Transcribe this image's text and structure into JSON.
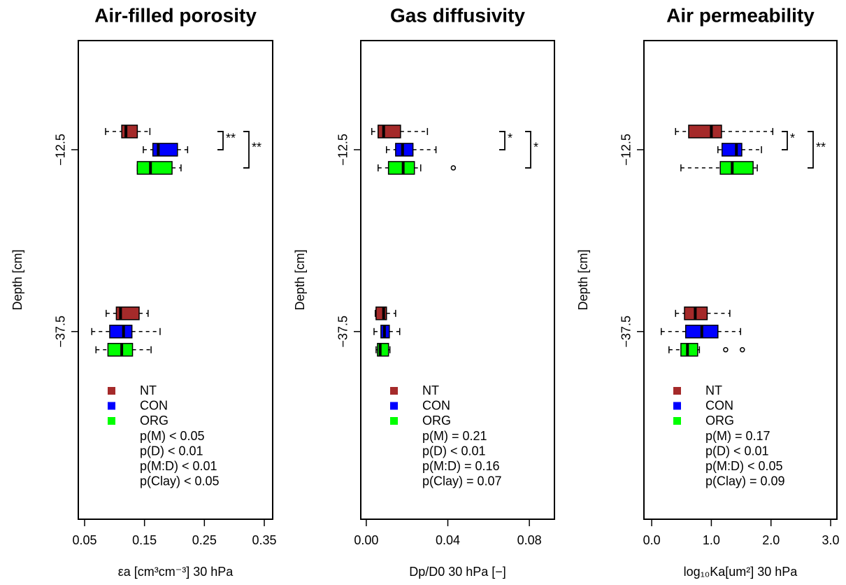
{
  "chart_data": [
    {
      "type": "boxplot",
      "title": "Air-filled porosity",
      "x_label": "εa [cm³cm⁻³] 30 hPa",
      "y_label": "Depth [cm]",
      "y": [
        -12.5,
        -37.5
      ],
      "xlim": [
        0.0395,
        0.364
      ],
      "xticks": [
        0.05,
        0.15,
        0.25,
        0.35
      ],
      "ylim": [
        -63.3,
        2.5
      ],
      "yticks": [
        {
          "value": -12.5,
          "label": "−12.5"
        },
        {
          "value": -37.5,
          "label": "−37.5"
        }
      ],
      "series": [
        {
          "name": "NT",
          "color": "#a52a2a",
          "values": [
            {
              "whisker_low": 0.085,
              "q1": 0.112,
              "median": 0.119,
              "q3": 0.138,
              "whisker_high": 0.159,
              "outliers": []
            },
            {
              "whisker_low": 0.086,
              "q1": 0.103,
              "median": 0.11,
              "q3": 0.141,
              "whisker_high": 0.156,
              "outliers": []
            }
          ]
        },
        {
          "name": "CON",
          "color": "#0000ff",
          "values": [
            {
              "whisker_low": 0.148,
              "q1": 0.164,
              "median": 0.173,
              "q3": 0.205,
              "whisker_high": 0.222,
              "outliers": []
            },
            {
              "whisker_low": 0.062,
              "q1": 0.092,
              "median": 0.115,
              "q3": 0.129,
              "whisker_high": 0.176,
              "outliers": []
            }
          ]
        },
        {
          "name": "ORG",
          "color": "#00ff00",
          "values": [
            {
              "whisker_low": 0.138,
              "q1": 0.138,
              "median": 0.16,
              "q3": 0.196,
              "whisker_high": 0.211,
              "outliers": []
            },
            {
              "whisker_low": 0.069,
              "q1": 0.089,
              "median": 0.112,
              "q3": 0.13,
              "whisker_high": 0.161,
              "outliers": []
            }
          ]
        }
      ],
      "brackets": [
        {
          "label": "**",
          "groups": [
            "NT",
            "CON"
          ]
        },
        {
          "label": "**",
          "groups": [
            "NT",
            "ORG"
          ]
        }
      ],
      "stats": [
        "p(M) < 0.05",
        "p(D) < 0.01",
        "p(M:D) < 0.01",
        "p(Clay) < 0.05"
      ]
    },
    {
      "type": "boxplot",
      "title": "Gas diffusivity",
      "x_label": "Dp/D0 30 hPa [−]",
      "y_label": "Depth [cm]",
      "y": [
        -12.5,
        -37.5
      ],
      "xlim": [
        -0.0027,
        0.0923
      ],
      "xticks": [
        {
          "value": 0,
          "label": "0.00"
        },
        0.04,
        0.08
      ],
      "ylim": [
        -63.3,
        2.5
      ],
      "yticks": [
        {
          "value": -12.5,
          "label": "−12.5"
        },
        {
          "value": -37.5,
          "label": "−37.5"
        }
      ],
      "series": [
        {
          "name": "NT",
          "color": "#a52a2a",
          "values": [
            {
              "whisker_low": 0.0027,
              "q1": 0.0058,
              "median": 0.0085,
              "q3": 0.0168,
              "whisker_high": 0.03,
              "outliers": []
            },
            {
              "whisker_low": 0.0044,
              "q1": 0.0048,
              "median": 0.0085,
              "q3": 0.0099,
              "whisker_high": 0.0144,
              "outliers": []
            }
          ]
        },
        {
          "name": "CON",
          "color": "#0000ff",
          "values": [
            {
              "whisker_low": 0.0099,
              "q1": 0.0144,
              "median": 0.0178,
              "q3": 0.0229,
              "whisker_high": 0.0342,
              "outliers": []
            },
            {
              "whisker_low": 0.0038,
              "q1": 0.0072,
              "median": 0.0089,
              "q3": 0.0113,
              "whisker_high": 0.0164,
              "outliers": []
            }
          ]
        },
        {
          "name": "ORG",
          "color": "#00ff00",
          "values": [
            {
              "whisker_low": 0.0058,
              "q1": 0.0109,
              "median": 0.0181,
              "q3": 0.0236,
              "whisker_high": 0.0267,
              "outliers": [
                0.0427
              ]
            },
            {
              "whisker_low": 0.0048,
              "q1": 0.0055,
              "median": 0.0068,
              "q3": 0.0109,
              "whisker_high": 0.0116,
              "outliers": []
            }
          ]
        }
      ],
      "brackets": [
        {
          "label": "*",
          "groups": [
            "NT",
            "CON"
          ]
        },
        {
          "label": "*",
          "groups": [
            "NT",
            "ORG"
          ]
        }
      ],
      "stats": [
        "p(M) = 0.21",
        "p(D) < 0.01",
        "p(M:D) = 0.16",
        "p(Clay) = 0.07"
      ]
    },
    {
      "type": "boxplot",
      "title": "Air permeability",
      "x_label": "log₁₀Ka[um²] 30 hPa",
      "y_label": "Depth [cm]",
      "y": [
        -12.5,
        -37.5
      ],
      "xlim": [
        -0.13,
        3.105
      ],
      "xticks": [
        {
          "value": 0,
          "label": "0.0"
        },
        {
          "value": 1,
          "label": "1.0"
        },
        {
          "value": 2,
          "label": "2.0"
        },
        {
          "value": 3,
          "label": "3.0"
        }
      ],
      "ylim": [
        -63.3,
        2.5
      ],
      "yticks": [
        {
          "value": -12.5,
          "label": "−12.5"
        },
        {
          "value": -37.5,
          "label": "−37.5"
        }
      ],
      "series": [
        {
          "name": "NT",
          "color": "#a52a2a",
          "values": [
            {
              "whisker_low": 0.4,
              "q1": 0.62,
              "median": 1.0,
              "q3": 1.17,
              "whisker_high": 2.03,
              "outliers": []
            },
            {
              "whisker_low": 0.4,
              "q1": 0.55,
              "median": 0.73,
              "q3": 0.93,
              "whisker_high": 1.31,
              "outliers": []
            }
          ]
        },
        {
          "name": "CON",
          "color": "#0000ff",
          "values": [
            {
              "whisker_low": 1.11,
              "q1": 1.18,
              "median": 1.42,
              "q3": 1.51,
              "whisker_high": 1.84,
              "outliers": []
            },
            {
              "whisker_low": 0.16,
              "q1": 0.57,
              "median": 0.84,
              "q3": 1.11,
              "whisker_high": 1.49,
              "outliers": []
            }
          ]
        },
        {
          "name": "ORG",
          "color": "#00ff00",
          "values": [
            {
              "whisker_low": 0.49,
              "q1": 1.15,
              "median": 1.35,
              "q3": 1.7,
              "whisker_high": 1.77,
              "outliers": []
            },
            {
              "whisker_low": 0.29,
              "q1": 0.49,
              "median": 0.6,
              "q3": 0.77,
              "whisker_high": 0.8,
              "outliers": [
                1.24,
                1.52
              ]
            }
          ]
        }
      ],
      "brackets": [
        {
          "label": "*",
          "groups": [
            "NT",
            "CON"
          ]
        },
        {
          "label": "**",
          "groups": [
            "NT",
            "ORG"
          ]
        }
      ],
      "stats": [
        "p(M) = 0.17",
        "p(D) < 0.01",
        "p(M:D) < 0.05",
        "p(Clay) = 0.09"
      ]
    }
  ]
}
